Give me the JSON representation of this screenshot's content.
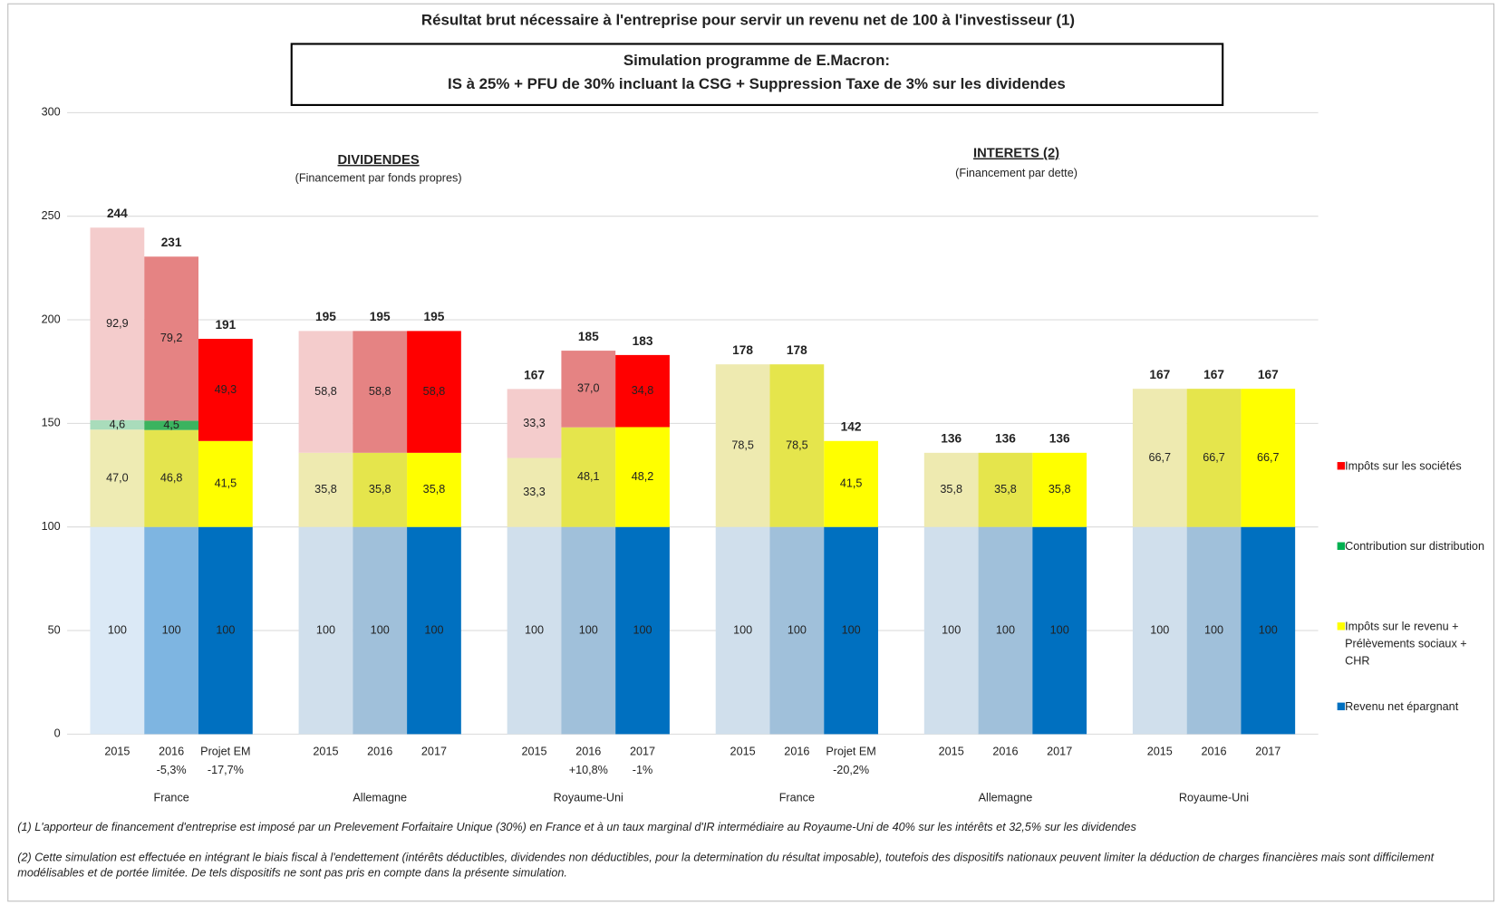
{
  "chart_data": {
    "type": "stacked_bar",
    "title": "Résultat brut nécessaire à l'entreprise pour servir un revenu net de 100 à l'investisseur (1)",
    "subtitle": [
      "Simulation programme de E.Macron:",
      "IS à 25% + PFU de 30% incluant la CSG  +  Suppression Taxe de 3% sur les dividendes"
    ],
    "annotations": [
      {
        "title": "DIVIDENDES",
        "text": "(Financement par fonds propres)"
      },
      {
        "title": "INTERETS (2)",
        "text": "(Financement par dette)"
      }
    ],
    "categories": [
      "2015",
      "2016",
      "Projet EM",
      "2015",
      "2016",
      "2017",
      "2015",
      "2016",
      "2017",
      "2015",
      "2016",
      "Projet EM",
      "2015",
      "2016",
      "2017",
      "2015",
      "2016",
      "2017"
    ],
    "category_notes": [
      null,
      "-5,3%",
      "-17,7%",
      null,
      null,
      null,
      null,
      "+10,8%",
      "-1%",
      null,
      null,
      "-20,2%",
      null,
      null,
      null,
      null,
      null,
      null
    ],
    "groups": [
      "France",
      "Allemagne",
      "Royaume-Uni",
      "France",
      "Allemagne",
      "Royaume-Uni"
    ],
    "series": [
      {
        "name": "Revenu net épargnant",
        "color": "#0070c0",
        "colors": [
          "#dbe9f6",
          "#7eb5e1",
          "#0070c0",
          "#d0dfec",
          "#a0c0da",
          "#0070c0",
          "#d0dfec",
          "#a0c0da",
          "#0070c0",
          "#d0dfec",
          "#a0c0da",
          "#0070c0",
          "#d0dfec",
          "#a0c0da",
          "#0070c0",
          "#d0dfec",
          "#a0c0da",
          "#0070c0"
        ],
        "values": [
          100,
          100,
          100,
          100,
          100,
          100,
          100,
          100,
          100,
          100,
          100,
          100,
          100,
          100,
          100,
          100,
          100,
          100
        ]
      },
      {
        "name": "Impôts sur le revenu + Prélèvements sociaux + CHR",
        "color": "#ffff00",
        "colors": [
          "#eeebb3",
          "#e4e44e",
          "#ffff00",
          "#eeeab0",
          "#e5e54c",
          "#ffff00",
          "#eeeab0",
          "#e5e54c",
          "#ffff00",
          "#eeeab0",
          "#e5e54c",
          "#ffff00",
          "#eeeab0",
          "#e5e54c",
          "#ffff00",
          "#eeeab0",
          "#e5e54c",
          "#ffff00"
        ],
        "values": [
          47.0,
          46.8,
          41.5,
          35.8,
          35.8,
          35.8,
          33.3,
          48.1,
          48.2,
          78.5,
          78.5,
          41.5,
          35.8,
          35.8,
          35.8,
          66.7,
          66.7,
          66.7
        ],
        "value_labels": [
          "47,0",
          "46,8",
          "41,5",
          "35,8",
          "35,8",
          "35,8",
          "33,3",
          "48,1",
          "48,2",
          "78,5",
          "78,5",
          "41,5",
          "35,8",
          "35,8",
          "35,8",
          "66,7",
          "66,7",
          "66,7"
        ]
      },
      {
        "name": "Contribution sur distribution",
        "color": "#00b050",
        "colors": [
          "#a9dcbb",
          "#3bb35f",
          null,
          null,
          null,
          null,
          null,
          null,
          null,
          null,
          null,
          null,
          null,
          null,
          null,
          null,
          null,
          null
        ],
        "values": [
          4.6,
          4.5,
          null,
          null,
          null,
          null,
          null,
          null,
          null,
          null,
          null,
          null,
          null,
          null,
          null,
          null,
          null,
          null
        ],
        "value_labels": [
          "4,6",
          "4,5",
          null,
          null,
          null,
          null,
          null,
          null,
          null,
          null,
          null,
          null,
          null,
          null,
          null,
          null,
          null,
          null
        ]
      },
      {
        "name": "Impôts sur les sociétés",
        "color": "#ff0000",
        "colors": [
          "#f4cccc",
          "#e58383",
          "#ff0000",
          "#f4cccc",
          "#e58383",
          "#ff0000",
          "#f4cccc",
          "#e58383",
          "#ff0000",
          null,
          null,
          null,
          null,
          null,
          null,
          null,
          null,
          null
        ],
        "values": [
          92.9,
          79.2,
          49.3,
          58.8,
          58.8,
          58.8,
          33.3,
          37.0,
          34.8,
          null,
          null,
          null,
          null,
          null,
          null,
          null,
          null,
          null
        ],
        "value_labels": [
          "92,9",
          "79,2",
          "49,3",
          "58,8",
          "58,8",
          "58,8",
          "33,3",
          "37,0",
          "34,8",
          null,
          null,
          null,
          null,
          null,
          null,
          null,
          null,
          null
        ]
      }
    ],
    "totals": [
      244,
      231,
      191,
      195,
      195,
      195,
      167,
      185,
      183,
      178,
      178,
      142,
      136,
      136,
      136,
      167,
      167,
      167
    ],
    "ylim": [
      0,
      300
    ],
    "yticks": [
      0,
      50,
      100,
      150,
      200,
      250,
      300
    ],
    "grid": true,
    "legend": "right",
    "footnotes": [
      "(1) L'apporteur de financement d'entreprise est imposé par un Prelevement Forfaitaire Unique (30%) en France et à un taux marginal d'IR intermédiaire au Royaume-Uni de  40% sur les intérêts et 32,5% sur les dividendes",
      "(2) Cette simulation est effectuée en intégrant le biais fiscal à l'endettement (intérêts déductibles, dividendes non déductibles, pour la determination du résultat imposable), toutefois des dispositifs nationaux peuvent limiter la déduction de charges financières mais sont difficilement modélisables et de portée limitée. De tels dispositifs ne sont pas pris en compte dans la présente simulation."
    ]
  }
}
